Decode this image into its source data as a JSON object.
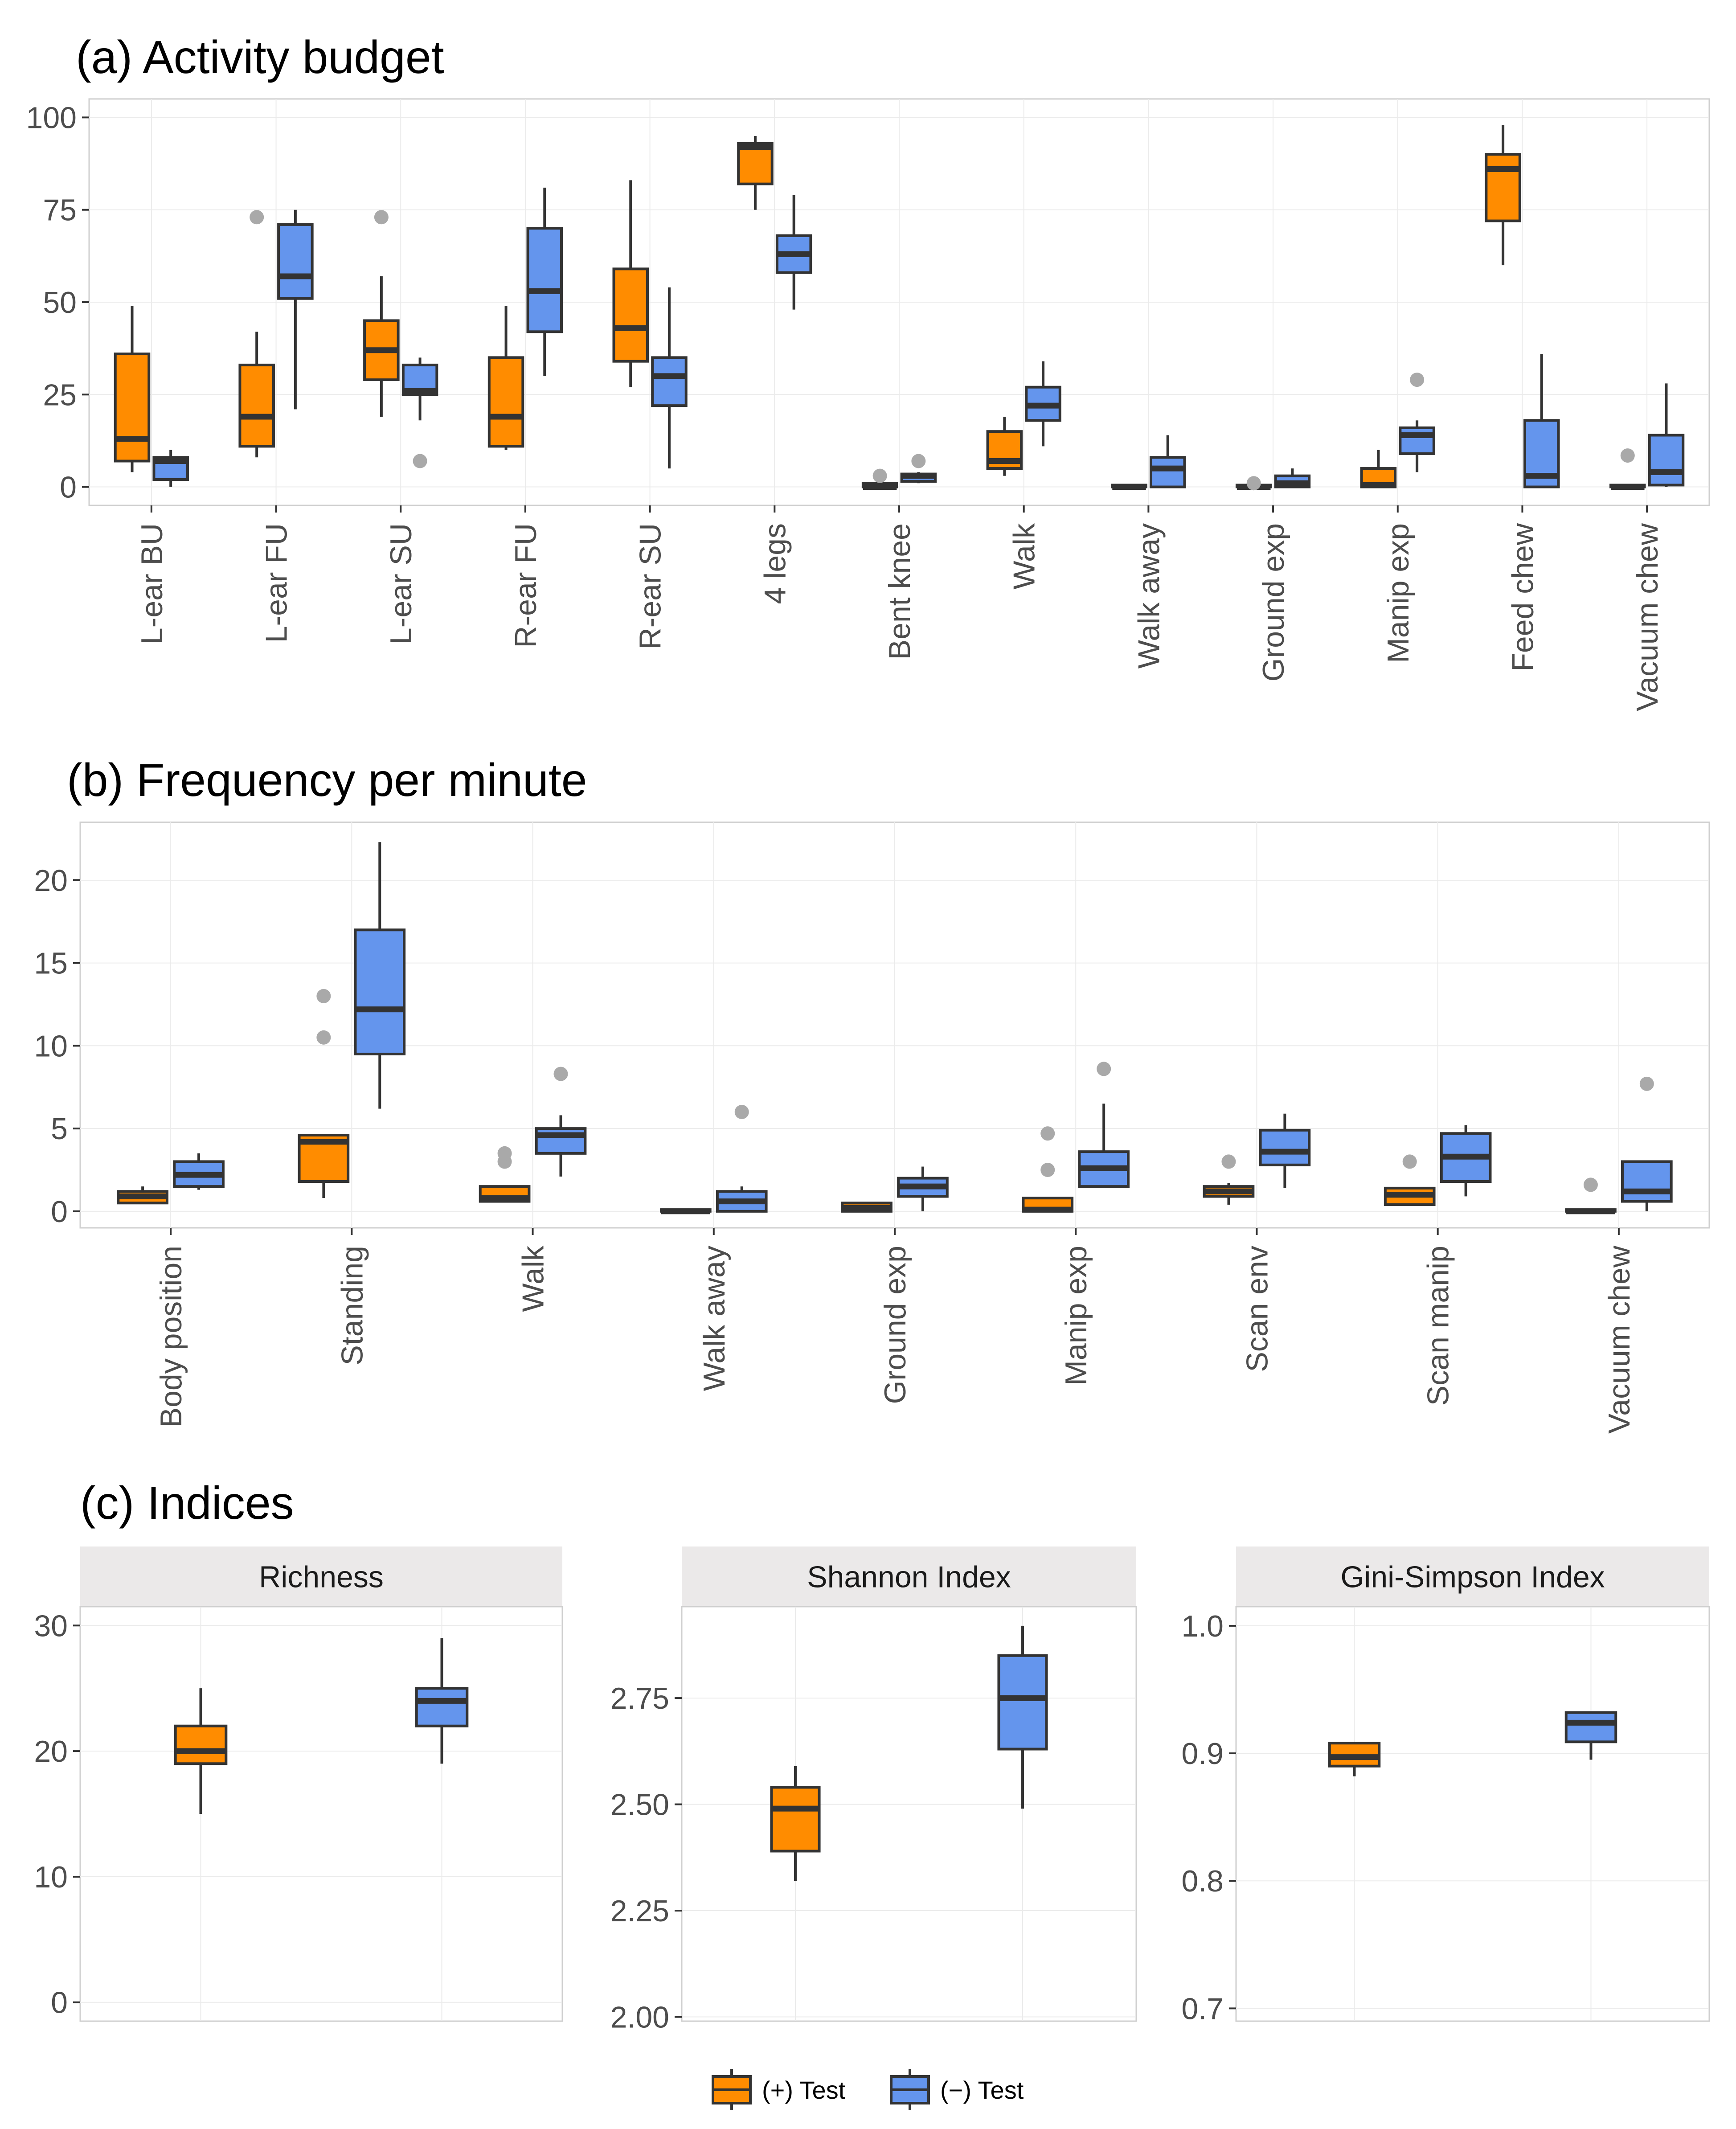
{
  "colors": {
    "pos": "#FF8C00",
    "neg": "#6495ED",
    "outlier": "#A9A9A9",
    "strip_bg": "#EBE9E9"
  },
  "legend": {
    "items": [
      {
        "label": "(+) Test",
        "color": "#FF8C00"
      },
      {
        "label": "(−) Test",
        "color": "#6495ED"
      }
    ]
  },
  "chart_data": [
    {
      "id": "a",
      "type": "box",
      "title": "(a) Activity budget",
      "ylim": [
        -5,
        105
      ],
      "yticks": [
        0,
        25,
        50,
        75,
        100
      ],
      "categories": [
        "L-ear BU",
        "L-ear FU",
        "L-ear SU",
        "R-ear FU",
        "R-ear SU",
        "4 legs",
        "Bent knee",
        "Walk",
        "Walk away",
        "Ground exp",
        "Manip exp",
        "Feed chew",
        "Vacuum chew"
      ],
      "series": [
        {
          "name": "(+) Test",
          "boxes": [
            {
              "min": 4,
              "q1": 7,
              "med": 13,
              "q3": 36,
              "max": 49,
              "out": []
            },
            {
              "min": 8,
              "q1": 11,
              "med": 19,
              "q3": 33,
              "max": 42,
              "out": [
                73
              ]
            },
            {
              "min": 19,
              "q1": 29,
              "med": 37,
              "q3": 45,
              "max": 57,
              "out": [
                73
              ]
            },
            {
              "min": 10,
              "q1": 11,
              "med": 19,
              "q3": 35,
              "max": 49,
              "out": []
            },
            {
              "min": 27,
              "q1": 34,
              "med": 43,
              "q3": 59,
              "max": 83,
              "out": []
            },
            {
              "min": 75,
              "q1": 82,
              "med": 92,
              "q3": 93,
              "max": 95,
              "out": []
            },
            {
              "min": 0,
              "q1": 0,
              "med": 0,
              "q3": 1,
              "max": 1,
              "out": [
                3
              ]
            },
            {
              "min": 3,
              "q1": 5,
              "med": 7,
              "q3": 15,
              "max": 19,
              "out": []
            },
            {
              "min": 0,
              "q1": 0,
              "med": 0,
              "q3": 0.5,
              "max": 0.5,
              "out": []
            },
            {
              "min": 0,
              "q1": 0,
              "med": 0,
              "q3": 0.5,
              "max": 0.5,
              "out": [
                1
              ]
            },
            {
              "min": 0,
              "q1": 0,
              "med": 0.5,
              "q3": 5,
              "max": 10,
              "out": []
            },
            {
              "min": 60,
              "q1": 72,
              "med": 86,
              "q3": 90,
              "max": 98,
              "out": []
            },
            {
              "min": 0,
              "q1": 0,
              "med": 0,
              "q3": 0.5,
              "max": 0.5,
              "out": [
                8.5
              ]
            }
          ]
        },
        {
          "name": "(−) Test",
          "boxes": [
            {
              "min": 0,
              "q1": 2,
              "med": 7,
              "q3": 8,
              "max": 10,
              "out": []
            },
            {
              "min": 21,
              "q1": 51,
              "med": 57,
              "q3": 71,
              "max": 75,
              "out": []
            },
            {
              "min": 18,
              "q1": 25,
              "med": 26,
              "q3": 33,
              "max": 35,
              "out": [
                7
              ]
            },
            {
              "min": 30,
              "q1": 42,
              "med": 53,
              "q3": 70,
              "max": 81,
              "out": []
            },
            {
              "min": 5,
              "q1": 22,
              "med": 30,
              "q3": 35,
              "max": 54,
              "out": []
            },
            {
              "min": 48,
              "q1": 58,
              "med": 63,
              "q3": 68,
              "max": 79,
              "out": []
            },
            {
              "min": 1,
              "q1": 1.5,
              "med": 3,
              "q3": 3.5,
              "max": 4,
              "out": [
                7
              ]
            },
            {
              "min": 11,
              "q1": 18,
              "med": 22,
              "q3": 27,
              "max": 34,
              "out": []
            },
            {
              "min": 0,
              "q1": 0,
              "med": 5,
              "q3": 8,
              "max": 14,
              "out": []
            },
            {
              "min": 0,
              "q1": 0,
              "med": 1,
              "q3": 3,
              "max": 5,
              "out": []
            },
            {
              "min": 4,
              "q1": 9,
              "med": 14,
              "q3": 16,
              "max": 18,
              "out": [
                29
              ]
            },
            {
              "min": 0,
              "q1": 0,
              "med": 3,
              "q3": 18,
              "max": 36,
              "out": []
            },
            {
              "min": 0,
              "q1": 0.5,
              "med": 4,
              "q3": 14,
              "max": 28,
              "out": []
            }
          ]
        }
      ]
    },
    {
      "id": "b",
      "type": "box",
      "title": "(b) Frequency per minute",
      "ylim": [
        -1,
        23.5
      ],
      "yticks": [
        0,
        5,
        10,
        15,
        20
      ],
      "categories": [
        "Body position",
        "Standing",
        "Walk",
        "Walk away",
        "Ground exp",
        "Manip exp",
        "Scan env",
        "Scan manip",
        "Vacuum chew"
      ],
      "series": [
        {
          "name": "(+) Test",
          "boxes": [
            {
              "min": 0.5,
              "q1": 0.5,
              "med": 0.9,
              "q3": 1.2,
              "max": 1.5,
              "out": []
            },
            {
              "min": 0.8,
              "q1": 1.8,
              "med": 4.2,
              "q3": 4.6,
              "max": 4.6,
              "out": [
                10.5,
                13
              ]
            },
            {
              "min": 0.6,
              "q1": 0.6,
              "med": 0.8,
              "q3": 1.5,
              "max": 1.5,
              "out": [
                3,
                3.5
              ]
            },
            {
              "min": 0,
              "q1": 0,
              "med": 0,
              "q3": 0.1,
              "max": 0.1,
              "out": []
            },
            {
              "min": 0,
              "q1": 0,
              "med": 0.2,
              "q3": 0.5,
              "max": 0.5,
              "out": []
            },
            {
              "min": 0,
              "q1": 0,
              "med": 0.1,
              "q3": 0.8,
              "max": 0.8,
              "out": [
                2.5,
                4.7
              ]
            },
            {
              "min": 0.4,
              "q1": 0.9,
              "med": 1.2,
              "q3": 1.5,
              "max": 1.7,
              "out": [
                3
              ]
            },
            {
              "min": 0.4,
              "q1": 0.4,
              "med": 1,
              "q3": 1.4,
              "max": 1.4,
              "out": [
                3
              ]
            },
            {
              "min": 0,
              "q1": 0,
              "med": 0,
              "q3": 0.1,
              "max": 0.1,
              "out": [
                1.6
              ]
            }
          ]
        },
        {
          "name": "(−) Test",
          "boxes": [
            {
              "min": 1.3,
              "q1": 1.5,
              "med": 2.2,
              "q3": 3,
              "max": 3.5,
              "out": []
            },
            {
              "min": 6.2,
              "q1": 9.5,
              "med": 12.2,
              "q3": 17,
              "max": 22.3,
              "out": []
            },
            {
              "min": 2.1,
              "q1": 3.5,
              "med": 4.6,
              "q3": 5,
              "max": 5.8,
              "out": [
                8.3
              ]
            },
            {
              "min": 0,
              "q1": 0,
              "med": 0.6,
              "q3": 1.2,
              "max": 1.5,
              "out": [
                6
              ]
            },
            {
              "min": 0,
              "q1": 0.9,
              "med": 1.5,
              "q3": 2,
              "max": 2.7,
              "out": []
            },
            {
              "min": 1.4,
              "q1": 1.5,
              "med": 2.6,
              "q3": 3.6,
              "max": 6.5,
              "out": [
                8.6
              ]
            },
            {
              "min": 1.4,
              "q1": 2.8,
              "med": 3.6,
              "q3": 4.9,
              "max": 5.9,
              "out": []
            },
            {
              "min": 0.9,
              "q1": 1.8,
              "med": 3.3,
              "q3": 4.7,
              "max": 5.2,
              "out": []
            },
            {
              "min": 0,
              "q1": 0.6,
              "med": 1.2,
              "q3": 3,
              "max": 3,
              "out": [
                7.7
              ]
            }
          ]
        }
      ]
    },
    {
      "id": "c",
      "type": "box",
      "title": "(c) Indices",
      "facets": [
        {
          "strip": "Richness",
          "ylim": [
            -1.5,
            31.5
          ],
          "yticks": [
            0,
            10,
            20,
            30
          ],
          "tick_labels": [
            "0",
            "10",
            "20",
            "30"
          ],
          "boxes": [
            {
              "series": "(+) Test",
              "min": 15,
              "q1": 19,
              "med": 20,
              "q3": 22,
              "max": 25
            },
            {
              "series": "(−) Test",
              "min": 19,
              "q1": 22,
              "med": 24,
              "q3": 25,
              "max": 29
            }
          ]
        },
        {
          "strip": "Shannon Index",
          "ylim": [
            1.99,
            2.965
          ],
          "yticks": [
            2.0,
            2.25,
            2.5,
            2.75
          ],
          "tick_labels": [
            "2.00",
            "2.25",
            "2.50",
            "2.75"
          ],
          "boxes": [
            {
              "series": "(+) Test",
              "min": 2.32,
              "q1": 2.39,
              "med": 2.49,
              "q3": 2.54,
              "max": 2.59
            },
            {
              "series": "(−) Test",
              "min": 2.49,
              "q1": 2.63,
              "med": 2.75,
              "q3": 2.85,
              "max": 2.92
            }
          ]
        },
        {
          "strip": "Gini-Simpson Index",
          "ylim": [
            0.69,
            1.015
          ],
          "yticks": [
            0.7,
            0.8,
            0.9,
            1.0
          ],
          "tick_labels": [
            "0.7",
            "0.8",
            "0.9",
            "1.0"
          ],
          "boxes": [
            {
              "series": "(+) Test",
              "min": 0.882,
              "q1": 0.89,
              "med": 0.897,
              "q3": 0.908,
              "max": 0.908
            },
            {
              "series": "(−) Test",
              "min": 0.895,
              "q1": 0.909,
              "med": 0.924,
              "q3": 0.932,
              "max": 0.932
            }
          ]
        }
      ]
    }
  ]
}
